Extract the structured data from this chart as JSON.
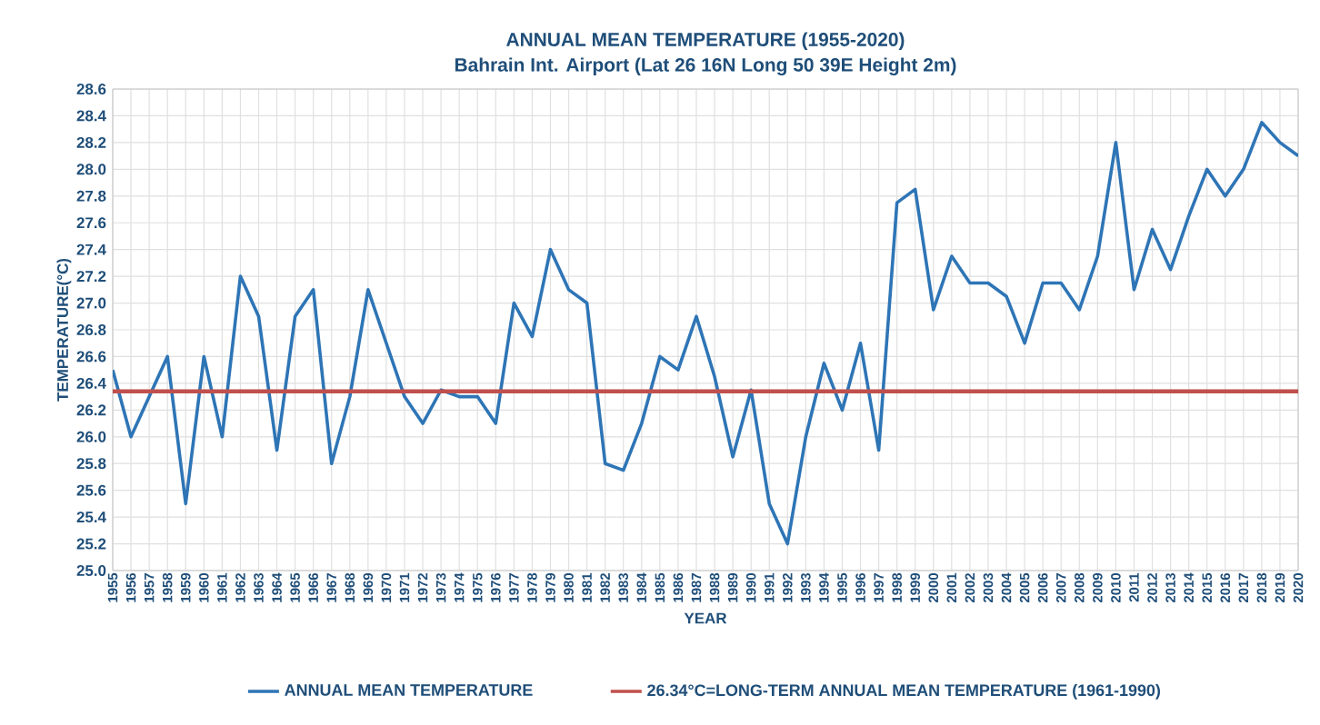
{
  "chart_data": {
    "type": "line",
    "title": "ANNUAL MEAN TEMPERATURE (1955-2020)",
    "subtitle": "Bahrain Int. Airport (Lat 26 16N Long 50 39E  Height 2m)",
    "xlabel": "YEAR",
    "ylabel": "TEMPERATURE(°C)",
    "categories": [
      "1955",
      "1956",
      "1957",
      "1958",
      "1959",
      "1960",
      "1961",
      "1962",
      "1963",
      "1964",
      "1965",
      "1966",
      "1967",
      "1968",
      "1969",
      "1970",
      "1971",
      "1972",
      "1973",
      "1974",
      "1975",
      "1976",
      "1977",
      "1978",
      "1979",
      "1980",
      "1981",
      "1982",
      "1983",
      "1984",
      "1985",
      "1986",
      "1987",
      "1988",
      "1989",
      "1990",
      "1991",
      "1992",
      "1993",
      "1994",
      "1995",
      "1996",
      "1997",
      "1998",
      "1999",
      "2000",
      "2001",
      "2002",
      "2003",
      "2004",
      "2005",
      "2006",
      "2007",
      "2008",
      "2009",
      "2010",
      "2011",
      "2012",
      "2013",
      "2014",
      "2015",
      "2016",
      "2017",
      "2018",
      "2019",
      "2020"
    ],
    "series": [
      {
        "name": "ANNUAL MEAN TEMPERATURE",
        "color": "#2e75b6",
        "values": [
          26.5,
          26.0,
          26.3,
          26.6,
          25.5,
          26.6,
          26.0,
          27.2,
          26.9,
          25.9,
          26.9,
          27.1,
          25.8,
          26.3,
          27.1,
          26.7,
          26.3,
          26.1,
          26.35,
          26.3,
          26.3,
          26.1,
          27.0,
          26.75,
          27.4,
          27.1,
          27.0,
          25.8,
          25.75,
          26.1,
          26.6,
          26.5,
          26.9,
          26.45,
          25.85,
          26.35,
          25.5,
          25.2,
          26.0,
          26.55,
          26.2,
          26.7,
          25.9,
          27.75,
          27.85,
          26.95,
          27.35,
          27.15,
          27.15,
          27.05,
          26.7,
          27.15,
          27.15,
          26.95,
          27.35,
          28.2,
          27.1,
          27.55,
          27.25,
          27.65,
          28.0,
          27.8,
          28.0,
          28.35,
          28.2,
          28.1
        ]
      }
    ],
    "ref_lines": [
      {
        "axis": "y",
        "value": 26.34,
        "label": "26.34°C=LONG-TERM ANNUAL MEAN TEMPERATURE (1961-1990)",
        "color": "#c0504d"
      }
    ],
    "ylim": [
      25.0,
      28.6
    ],
    "yticks": [
      {
        "value": 25.0,
        "label": "25.0"
      },
      25.2,
      25.4,
      25.6,
      25.8,
      {
        "value": 26.0,
        "label": "26.0"
      },
      26.2,
      26.4,
      26.6,
      26.8,
      {
        "value": 27.0,
        "label": "27.0"
      },
      27.2,
      27.4,
      27.6,
      27.8,
      {
        "value": 28.0,
        "label": "28.0"
      },
      28.2,
      28.4,
      28.6
    ],
    "grid": true,
    "legend": "bottom",
    "marker": "none",
    "line_style": "solid"
  }
}
